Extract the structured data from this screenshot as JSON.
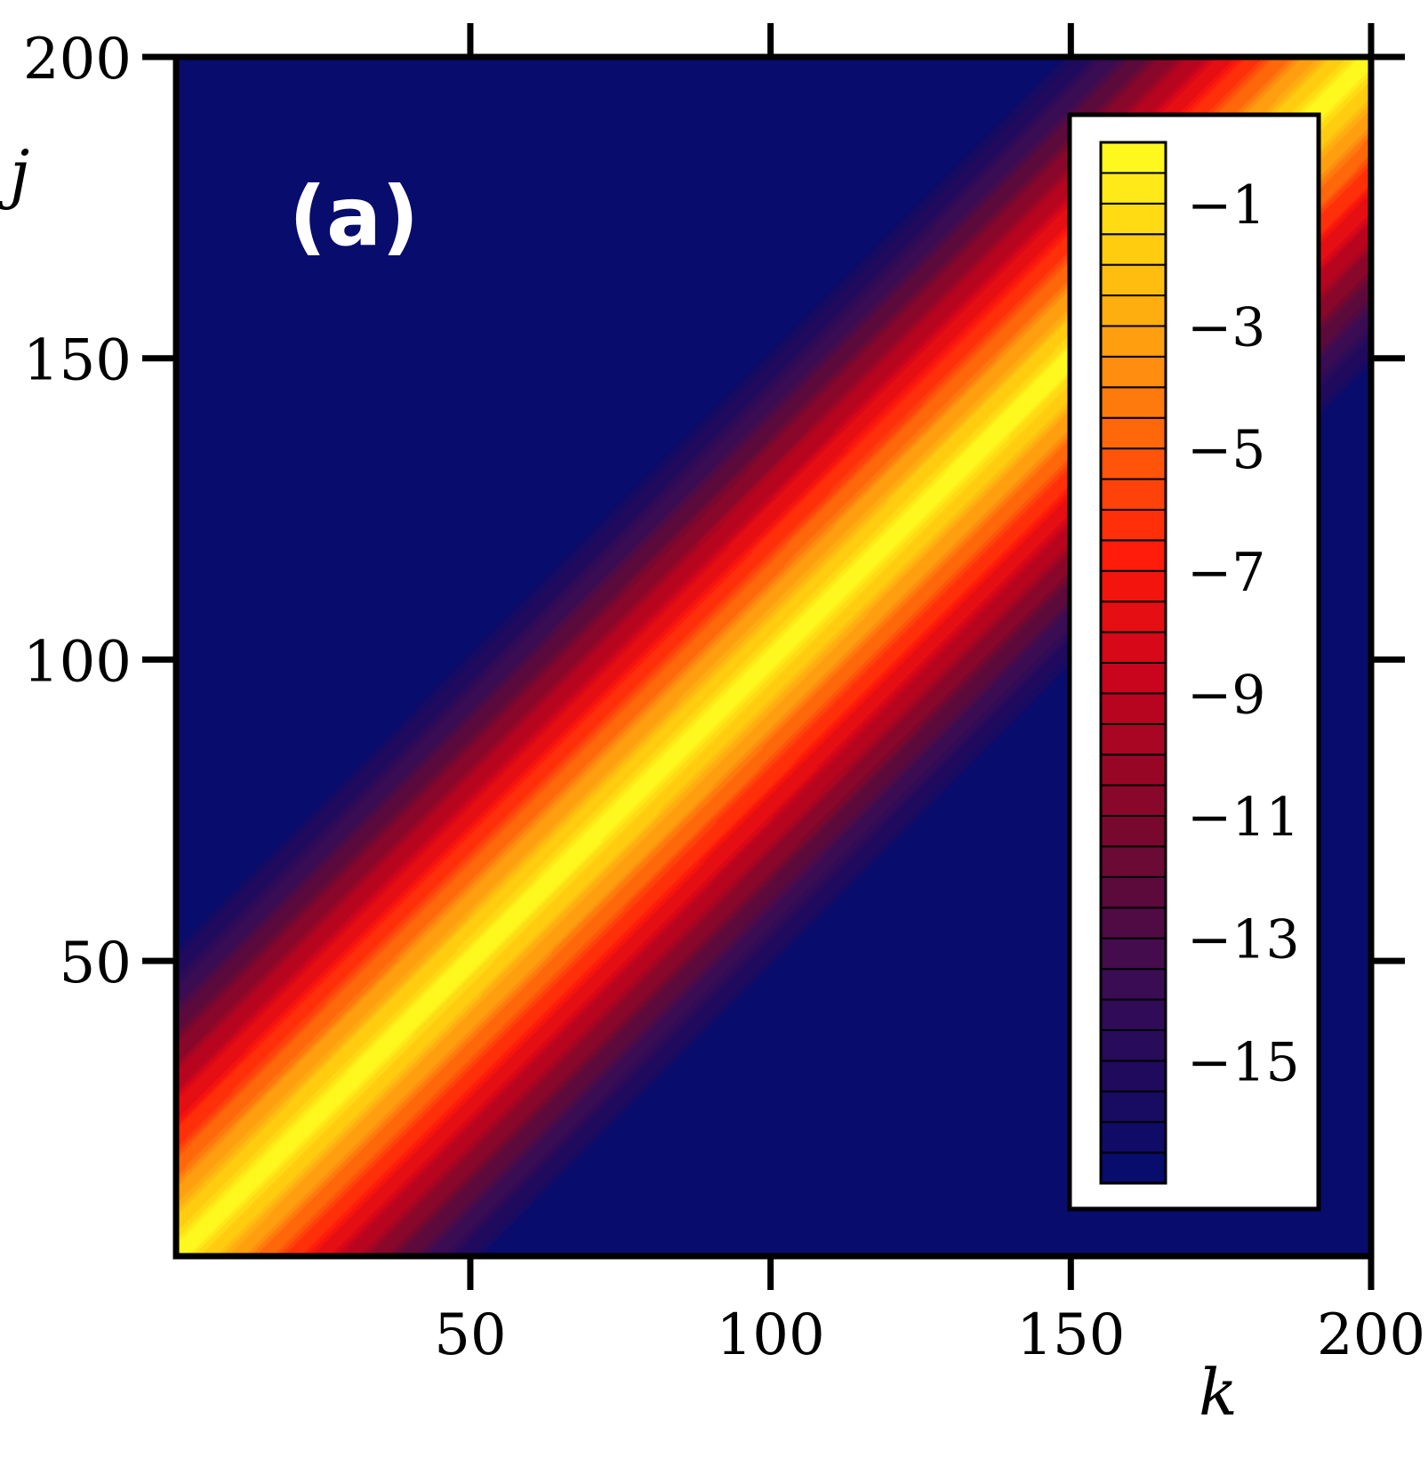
{
  "chart_data": {
    "type": "heatmap",
    "panel_label": "(a)",
    "xlabel": "k",
    "ylabel": "j",
    "xlim": [
      1,
      200
    ],
    "ylim": [
      1,
      200
    ],
    "x_ticks": [
      50,
      100,
      150,
      200
    ],
    "y_ticks": [
      50,
      100,
      150,
      200
    ],
    "x_tick_labels": [
      "50",
      "100",
      "150",
      "200"
    ],
    "y_tick_labels": [
      "50",
      "100",
      "150",
      "200"
    ],
    "description_of_field": "log10 magnitude; maximum (~0) along the diagonal j = k, decaying with |j - k|",
    "values_model": {
      "peak_value": 0,
      "floor_value": -17,
      "decay_per_unit_offset": 0.32
    },
    "colorbar": {
      "range": [
        -17,
        0
      ],
      "levels": 34,
      "tick_values": [
        -1,
        -3,
        -5,
        -7,
        -9,
        -11,
        -13,
        -15
      ],
      "tick_labels": [
        "−1",
        "−3",
        "−5",
        "−7",
        "−9",
        "−11",
        "−13",
        "−15"
      ],
      "colormap": [
        "#040c6e",
        "#1f0a5e",
        "#3b0c52",
        "#650a36",
        "#9a0625",
        "#d0051a",
        "#ff1a0a",
        "#ff5a0a",
        "#ff9a10",
        "#ffce10",
        "#ffff20"
      ],
      "placement": "inside top-right"
    },
    "grid": false
  }
}
